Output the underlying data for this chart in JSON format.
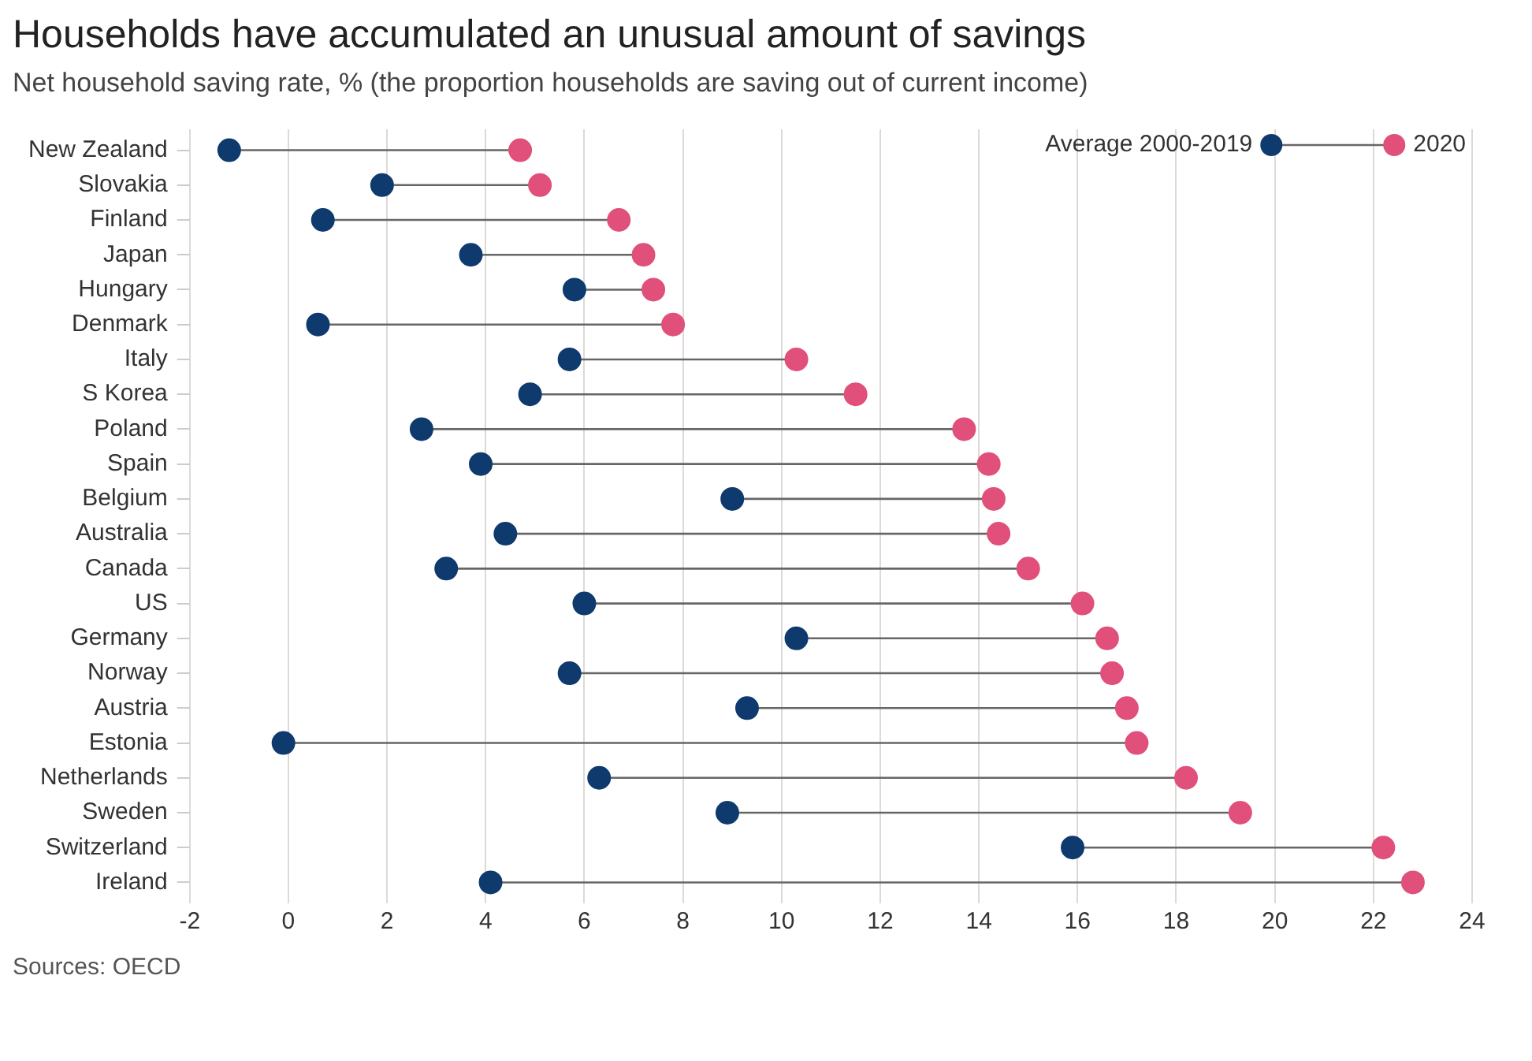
{
  "chart_data": {
    "type": "scatter",
    "orientation": "horizontal",
    "title": "Households have accumulated an unusual amount of savings",
    "subtitle": "Net household saving rate, % (the proportion households are saving out of current income)",
    "categories": [
      "New Zealand",
      "Slovakia",
      "Finland",
      "Japan",
      "Hungary",
      "Denmark",
      "Italy",
      "S Korea",
      "Poland",
      "Spain",
      "Belgium",
      "Australia",
      "Canada",
      "US",
      "Germany",
      "Norway",
      "Austria",
      "Estonia",
      "Netherlands",
      "Sweden",
      "Switzerland",
      "Ireland"
    ],
    "series": [
      {
        "name": "Average 2000-2019",
        "color": "#0f3a6e",
        "values": [
          -1.2,
          1.9,
          0.7,
          3.7,
          5.8,
          0.6,
          5.7,
          4.9,
          2.7,
          3.9,
          9.0,
          4.4,
          3.2,
          6.0,
          10.3,
          5.7,
          9.3,
          -0.1,
          6.3,
          8.9,
          15.9,
          4.1
        ]
      },
      {
        "name": "2020",
        "color": "#e0507a",
        "values": [
          4.7,
          5.1,
          6.7,
          7.2,
          7.4,
          7.8,
          10.3,
          11.5,
          13.7,
          14.2,
          14.3,
          14.4,
          15.0,
          16.1,
          16.6,
          16.7,
          17.0,
          17.2,
          18.2,
          19.3,
          22.2,
          22.8
        ]
      }
    ],
    "xlim": [
      -2,
      24
    ],
    "xticks": [
      -2,
      0,
      2,
      4,
      6,
      8,
      10,
      12,
      14,
      16,
      18,
      20,
      22,
      24
    ],
    "grid": "x",
    "legend": "top right",
    "marker": "circle",
    "annotations": [
      "Sources: OECD"
    ]
  }
}
